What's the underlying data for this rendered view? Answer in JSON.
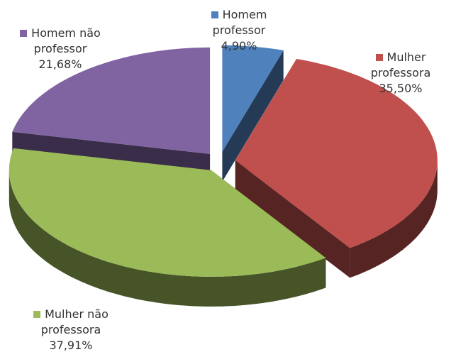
{
  "chart_data": {
    "type": "pie3d",
    "categories": [
      "Homem professor",
      "Mulher professora",
      "Mulher não professora",
      "Homem não professor"
    ],
    "values": [
      4.9,
      35.5,
      37.91,
      21.68
    ],
    "value_labels": [
      "4,90%",
      "35,50%",
      "37,91%",
      "21,68%"
    ],
    "colors": [
      "#4f81bd",
      "#c0504d",
      "#9bbb59",
      "#8064a2"
    ]
  }
}
